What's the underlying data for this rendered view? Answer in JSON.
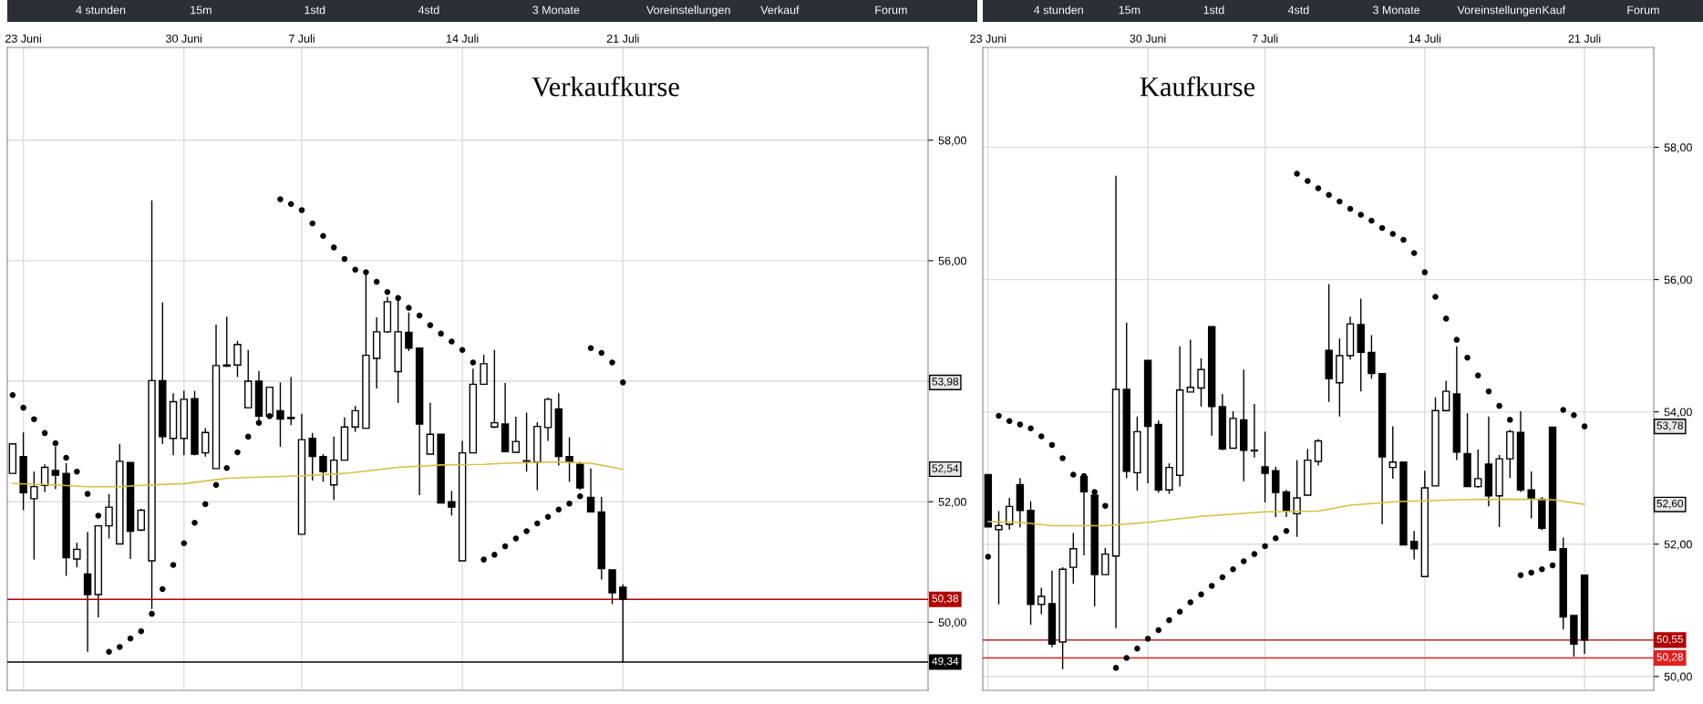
{
  "chart_data": [
    {
      "type": "candlestick",
      "title": "Verkaufkurse",
      "annotations": [
        "4 stunden",
        "15m",
        "1std",
        "4std",
        "3 Monate",
        "Voreinstellungen",
        "Verkauf",
        "Forum",
        {
          "text": "53,98",
          "y": 53.98
        },
        {
          "text": "52,54",
          "y": 52.54
        }
      ],
      "categories": [
        null,
        "23 Juni",
        null,
        null,
        null,
        null,
        null,
        null,
        null,
        null,
        null,
        null,
        null,
        null,
        null,
        null,
        "30 Juni",
        null,
        null,
        null,
        null,
        null,
        null,
        null,
        null,
        null,
        null,
        "7 Juli",
        null,
        null,
        null,
        null,
        null,
        null,
        null,
        null,
        null,
        null,
        null,
        null,
        null,
        null,
        "14 Juli",
        null,
        null,
        null,
        null,
        null,
        null,
        null,
        null,
        null,
        null,
        null,
        null,
        null,
        null,
        "21 Juli",
        null,
        null,
        null,
        null,
        null,
        null,
        null,
        null,
        null,
        null,
        null,
        null,
        null,
        null,
        null,
        null,
        null,
        null,
        null,
        null,
        null,
        null,
        null,
        null,
        null,
        null,
        null,
        null
      ],
      "ohlc": [
        [
          52.47,
          52.96,
          52.47,
          52.96
        ],
        [
          52.75,
          53.15,
          51.86,
          52.15
        ],
        [
          52.05,
          52.5,
          51.04,
          52.25
        ],
        [
          52.27,
          52.62,
          52.16,
          52.57
        ],
        [
          52.52,
          52.91,
          52.21,
          52.44
        ],
        [
          52.47,
          52.64,
          50.77,
          51.07
        ],
        [
          51.05,
          51.32,
          50.91,
          51.21
        ],
        [
          50.8,
          51.5,
          49.51,
          50.46
        ],
        [
          50.46,
          51.6,
          50.08,
          51.6
        ],
        [
          51.6,
          52.13,
          51.39,
          51.91
        ],
        [
          51.3,
          52.96,
          51.3,
          52.67
        ],
        [
          52.65,
          52.65,
          51.05,
          51.51
        ],
        [
          51.53,
          51.88,
          51.51,
          51.86
        ],
        [
          51.02,
          57.0,
          50.22,
          54.01
        ],
        [
          54.01,
          55.31,
          52.96,
          53.08
        ],
        [
          53.05,
          53.8,
          52.77,
          53.66
        ],
        [
          53.05,
          53.84,
          52.77,
          53.7
        ],
        [
          53.71,
          53.84,
          52.77,
          52.79
        ],
        [
          52.81,
          53.22,
          52.75,
          53.15
        ],
        [
          52.55,
          54.94,
          52.55,
          54.26
        ],
        [
          54.26,
          55.07,
          54.24,
          54.26
        ],
        [
          54.27,
          54.67,
          54.07,
          54.61
        ],
        [
          53.56,
          54.52,
          53.56,
          54.0
        ],
        [
          54.0,
          54.17,
          53.32,
          53.42
        ],
        [
          53.42,
          53.91,
          53.41,
          53.9
        ],
        [
          53.51,
          53.98,
          52.91,
          53.37
        ],
        [
          53.4,
          54.07,
          53.27,
          53.38
        ],
        [
          51.46,
          53.46,
          51.46,
          53.03
        ],
        [
          53.05,
          53.14,
          52.35,
          52.75
        ],
        [
          52.75,
          52.79,
          52.33,
          52.5
        ],
        [
          52.28,
          53.08,
          52.03,
          52.69
        ],
        [
          52.69,
          53.4,
          52.69,
          53.24
        ],
        [
          53.24,
          53.59,
          53.16,
          53.51
        ],
        [
          53.22,
          55.84,
          53.22,
          54.43
        ],
        [
          54.38,
          55.06,
          53.88,
          54.82
        ],
        [
          54.82,
          55.4,
          54.8,
          55.32
        ],
        [
          54.16,
          55.38,
          53.64,
          54.82
        ],
        [
          54.81,
          55.14,
          54.5,
          54.55
        ],
        [
          54.55,
          54.55,
          52.11,
          53.29
        ],
        [
          52.79,
          53.64,
          52.79,
          53.12
        ],
        [
          53.12,
          53.12,
          51.98,
          51.98
        ],
        [
          52.0,
          52.18,
          51.77,
          51.91
        ],
        [
          51.02,
          53.01,
          51.02,
          52.81
        ],
        [
          52.81,
          54.21,
          52.81,
          53.95
        ],
        [
          53.95,
          54.44,
          53.95,
          54.29
        ],
        [
          53.24,
          54.52,
          53.22,
          53.31
        ],
        [
          53.29,
          53.97,
          52.83,
          52.83
        ],
        [
          52.82,
          53.41,
          52.82,
          53.0
        ],
        [
          52.68,
          53.48,
          52.5,
          52.67
        ],
        [
          52.66,
          53.32,
          52.19,
          53.25
        ],
        [
          53.23,
          53.73,
          53.01,
          53.7
        ],
        [
          53.54,
          53.8,
          52.6,
          52.75
        ],
        [
          52.75,
          53.07,
          52.33,
          52.66
        ],
        [
          52.62,
          52.66,
          52.2,
          52.23
        ],
        [
          52.07,
          52.55,
          51.83,
          51.83
        ],
        [
          51.83,
          52.08,
          50.71,
          50.89
        ],
        [
          50.87,
          50.87,
          50.3,
          50.49
        ],
        [
          50.58,
          50.63,
          49.34,
          50.38
        ],
        null,
        null,
        null,
        null,
        null,
        null,
        null,
        null,
        null,
        null,
        null,
        null,
        null,
        null,
        null,
        null,
        null,
        null,
        null,
        null,
        null,
        null,
        null,
        null,
        null,
        null,
        null,
        null
      ],
      "series": [
        {
          "type": "scatter",
          "color": "#000000",
          "marker": "circle",
          "values": [
            53.77,
            53.56,
            53.37,
            53.14,
            52.97,
            52.73,
            52.5,
            52.13,
            51.77,
            49.51,
            49.59,
            49.73,
            49.85,
            50.14,
            50.55,
            50.95,
            51.31,
            51.65,
            51.96,
            52.28,
            52.56,
            52.82,
            53.08,
            53.31,
            53.42,
            57.02,
            56.94,
            56.84,
            56.62,
            56.41,
            56.22,
            56.03,
            55.85,
            55.81,
            55.65,
            55.48,
            55.38,
            55.22,
            55.09,
            54.93,
            54.79,
            54.66,
            54.52,
            54.31,
            51.04,
            51.12,
            51.26,
            51.39,
            51.51,
            51.64,
            51.75,
            51.87,
            51.97,
            52.09,
            54.55,
            54.47,
            54.31,
            53.98,
            null,
            null,
            null,
            null,
            null,
            null,
            null,
            null,
            null,
            null,
            null,
            null,
            null,
            null,
            null,
            null,
            null,
            null,
            null,
            null,
            null,
            null,
            null,
            null,
            null,
            null,
            null,
            null
          ]
        },
        {
          "type": "line",
          "color": "#d4c040",
          "values": [
            52.3,
            null,
            null,
            null,
            52.28,
            null,
            null,
            52.25,
            null,
            null,
            52.25,
            null,
            52.27,
            null,
            null,
            null,
            52.3,
            null,
            null,
            null,
            52.39,
            null,
            null,
            null,
            null,
            null,
            null,
            52.43,
            null,
            null,
            null,
            52.47,
            null,
            null,
            null,
            null,
            52.57,
            null,
            null,
            null,
            52.61,
            null,
            null,
            null,
            52.62,
            null,
            52.64,
            null,
            null,
            null,
            null,
            52.66,
            null,
            null,
            52.64,
            null,
            null,
            52.54,
            null,
            null,
            null,
            null,
            null,
            null,
            null,
            null,
            null,
            null,
            null,
            null,
            null,
            null,
            null,
            null,
            null,
            null,
            null,
            null,
            null,
            null,
            null,
            null,
            null,
            null,
            null,
            null
          ]
        }
      ],
      "ref_lines": [
        {
          "axis": "y",
          "value": 50.38,
          "label": "50,38",
          "color": "#b00000"
        },
        {
          "axis": "y",
          "value": 49.34,
          "label": "49,34",
          "color": "#000000"
        }
      ],
      "ylim": [
        48.87,
        59.54
      ],
      "yticks": [
        {
          "value": 50,
          "label": "50,00"
        },
        {
          "value": 52,
          "label": "52,00"
        },
        {
          "value": 54,
          "label": null
        },
        {
          "value": 56,
          "label": "56,00"
        },
        {
          "value": 58,
          "label": "58,00"
        }
      ],
      "grid": true
    },
    {
      "type": "candlestick",
      "title": "Kaufkurse",
      "annotations": [
        "4 stunden",
        "15m",
        "1std",
        "4std",
        "3 Monate",
        "Voreinstellungen",
        "Kauf",
        "Forum",
        {
          "text": "53,78",
          "y": 53.78
        },
        {
          "text": "52,60",
          "y": 52.6
        }
      ],
      "categories": [
        "23 Juni",
        null,
        null,
        null,
        null,
        null,
        null,
        null,
        null,
        null,
        null,
        null,
        null,
        null,
        null,
        "30 Juni",
        null,
        null,
        null,
        null,
        null,
        null,
        null,
        null,
        null,
        null,
        "7 Juli",
        null,
        null,
        null,
        null,
        null,
        null,
        null,
        null,
        null,
        null,
        null,
        null,
        null,
        null,
        "14 Juli",
        null,
        null,
        null,
        null,
        null,
        null,
        null,
        null,
        null,
        null,
        null,
        null,
        null,
        null,
        "21 Juli",
        null,
        null,
        null,
        null,
        null,
        null
      ],
      "ohlc": [
        [
          53.05,
          53.05,
          52.26,
          52.26
        ],
        [
          52.22,
          52.5,
          51.09,
          52.28
        ],
        [
          52.3,
          52.7,
          52.22,
          52.57
        ],
        [
          52.9,
          53.0,
          52.25,
          52.51
        ],
        [
          52.51,
          52.65,
          50.78,
          51.09
        ],
        [
          51.09,
          51.34,
          50.94,
          51.21
        ],
        [
          51.1,
          51.6,
          50.44,
          50.49
        ],
        [
          50.52,
          51.65,
          50.11,
          51.62
        ],
        [
          51.65,
          52.17,
          51.4,
          51.93
        ],
        [
          53.02,
          53.05,
          51.83,
          52.79
        ],
        [
          52.74,
          52.74,
          51.06,
          51.54
        ],
        [
          51.54,
          51.94,
          51.54,
          51.85
        ],
        [
          51.82,
          57.57,
          50.73,
          54.34
        ],
        [
          54.34,
          55.35,
          53.0,
          53.1
        ],
        [
          53.08,
          53.93,
          52.81,
          53.7
        ],
        [
          54.78,
          54.78,
          52.92,
          53.78
        ],
        [
          53.81,
          53.87,
          52.78,
          52.82
        ],
        [
          52.82,
          53.22,
          52.76,
          53.16
        ],
        [
          53.04,
          54.99,
          52.87,
          54.33
        ],
        [
          54.3,
          55.09,
          54.3,
          54.37
        ],
        [
          54.36,
          54.81,
          54.08,
          54.64
        ],
        [
          55.29,
          55.29,
          53.64,
          54.08
        ],
        [
          54.08,
          54.27,
          53.42,
          53.44
        ],
        [
          53.45,
          54.01,
          53.45,
          53.9
        ],
        [
          53.88,
          54.64,
          52.95,
          53.42
        ],
        [
          53.42,
          54.12,
          53.31,
          53.41
        ],
        [
          53.17,
          53.7,
          52.63,
          53.07
        ],
        [
          53.11,
          53.17,
          52.41,
          52.78
        ],
        [
          52.79,
          52.82,
          52.41,
          52.51
        ],
        [
          52.46,
          53.27,
          52.11,
          52.7
        ],
        [
          52.74,
          53.44,
          52.74,
          53.27
        ],
        [
          53.25,
          53.59,
          53.19,
          53.56
        ],
        [
          54.93,
          55.93,
          54.15,
          54.5
        ],
        [
          54.44,
          55.11,
          53.93,
          54.85
        ],
        [
          54.85,
          55.44,
          54.79,
          55.33
        ],
        [
          55.32,
          55.71,
          54.31,
          54.9
        ],
        [
          54.9,
          55.16,
          54.5,
          54.58
        ],
        [
          54.58,
          54.58,
          52.3,
          53.32
        ],
        [
          53.16,
          53.78,
          52.99,
          53.24
        ],
        [
          53.24,
          53.24,
          51.99,
          51.99
        ],
        [
          52.04,
          52.2,
          51.77,
          51.93
        ],
        [
          51.51,
          53.11,
          51.51,
          52.85
        ],
        [
          52.88,
          54.22,
          52.88,
          54.02
        ],
        [
          54.02,
          54.47,
          54.02,
          54.31
        ],
        [
          54.27,
          54.99,
          53.27,
          53.39
        ],
        [
          53.37,
          53.98,
          52.87,
          52.87
        ],
        [
          52.87,
          53.43,
          52.85,
          52.99
        ],
        [
          53.21,
          53.93,
          52.57,
          52.73
        ],
        [
          52.73,
          53.35,
          52.26,
          53.29
        ],
        [
          53.29,
          53.73,
          53.0,
          53.7
        ],
        [
          53.69,
          54.01,
          52.79,
          52.82
        ],
        [
          52.82,
          53.1,
          52.39,
          52.7
        ],
        [
          52.68,
          52.71,
          52.21,
          52.24
        ],
        [
          53.77,
          53.77,
          51.91,
          51.91
        ],
        [
          51.93,
          52.1,
          50.71,
          50.9
        ],
        [
          50.92,
          50.92,
          50.3,
          50.49
        ],
        [
          51.53,
          51.53,
          50.34,
          50.55
        ],
        null,
        null,
        null,
        null,
        null,
        null
      ],
      "series": [
        {
          "type": "scatter",
          "color": "#000000",
          "marker": "circle",
          "values": [
            51.81,
            53.94,
            53.86,
            53.81,
            53.75,
            53.63,
            53.5,
            53.3,
            53.05,
            53.03,
            52.79,
            52.58,
            50.13,
            50.28,
            50.42,
            50.57,
            50.7,
            50.85,
            50.98,
            51.12,
            51.24,
            51.37,
            51.5,
            51.62,
            51.74,
            51.85,
            51.97,
            52.09,
            52.2,
            57.6,
            57.49,
            57.38,
            57.28,
            57.18,
            57.07,
            56.98,
            56.89,
            56.78,
            56.69,
            56.6,
            56.4,
            56.11,
            55.74,
            55.41,
            55.09,
            54.82,
            54.55,
            54.31,
            54.09,
            53.88,
            51.53,
            51.57,
            51.62,
            51.68,
            54.03,
            53.95,
            53.78,
            null,
            null,
            null,
            null,
            null,
            null
          ]
        },
        {
          "type": "line",
          "color": "#d4c040",
          "values": [
            52.34,
            null,
            null,
            52.33,
            null,
            null,
            52.28,
            null,
            null,
            null,
            null,
            52.28,
            null,
            null,
            null,
            52.33,
            null,
            null,
            null,
            null,
            52.42,
            null,
            null,
            null,
            null,
            null,
            52.49,
            null,
            null,
            null,
            null,
            52.5,
            null,
            null,
            52.59,
            null,
            null,
            null,
            52.64,
            null,
            null,
            null,
            null,
            null,
            52.67,
            null,
            null,
            null,
            null,
            52.68,
            null,
            null,
            null,
            52.67,
            null,
            null,
            52.6,
            null,
            null,
            null,
            null,
            null,
            null
          ]
        }
      ],
      "ref_lines": [
        {
          "axis": "y",
          "value": 50.55,
          "label": "50,55",
          "color": "#b00000"
        },
        {
          "axis": "y",
          "value": 50.28,
          "label": "50,28",
          "color": "#e02020"
        }
      ],
      "ylim": [
        49.79,
        59.51
      ],
      "yticks": [
        {
          "value": 50,
          "label": "50,00"
        },
        {
          "value": 52,
          "label": "52,00"
        },
        {
          "value": 54,
          "label": "54,00"
        },
        {
          "value": 56,
          "label": "56,00"
        },
        {
          "value": 58,
          "label": "58,00"
        }
      ],
      "grid": true
    }
  ]
}
